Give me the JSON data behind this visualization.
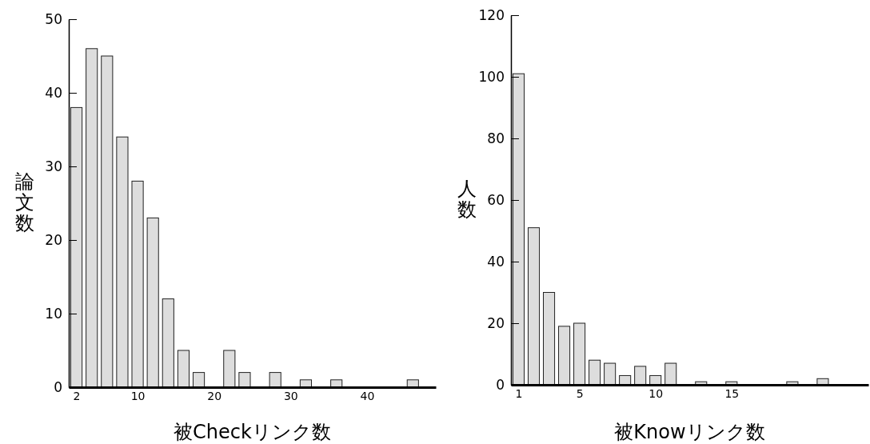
{
  "chart_data": [
    {
      "type": "histogram",
      "xlabel": "被Checkリンク数",
      "ylabel": "論文数",
      "bins": [
        1,
        3,
        5,
        7,
        9,
        11,
        13,
        15,
        17,
        19,
        21,
        23,
        25,
        27,
        29,
        31,
        33,
        35,
        37,
        39,
        41,
        43,
        45,
        47,
        49
      ],
      "values": [
        38,
        46,
        45,
        34,
        28,
        23,
        12,
        5,
        2,
        0,
        5,
        2,
        0,
        2,
        0,
        1,
        0,
        1,
        0,
        0,
        0,
        0,
        1,
        0
      ],
      "color": "#dddddd",
      "xlim": [
        1,
        49
      ],
      "xticks": [
        2,
        10,
        20,
        30,
        40
      ],
      "ylim": [
        0,
        50
      ],
      "yticks": [
        0,
        10,
        20,
        30,
        40,
        50
      ]
    },
    {
      "type": "histogram",
      "xlabel": "被Knowリンク数",
      "ylabel": "人数",
      "bins": [
        0.5,
        1.5,
        2.5,
        3.5,
        4.5,
        5.5,
        6.5,
        7.5,
        8.5,
        9.5,
        10.5,
        11.5,
        12.5,
        13.5,
        14.5,
        15.5,
        16.5,
        17.5,
        18.5,
        19.5,
        20.5,
        21.5,
        22.5,
        23.5
      ],
      "values": [
        101,
        51,
        30,
        19,
        20,
        8,
        7,
        3,
        6,
        3,
        7,
        0,
        1,
        0,
        1,
        0,
        0,
        0,
        1,
        0,
        2,
        0,
        0
      ],
      "color": "#dddddd",
      "xlim": [
        0.5,
        24
      ],
      "xticks": [
        1,
        5,
        10,
        15
      ],
      "ylim": [
        0,
        120
      ],
      "yticks": [
        0,
        20,
        40,
        60,
        80,
        100,
        120
      ]
    }
  ]
}
